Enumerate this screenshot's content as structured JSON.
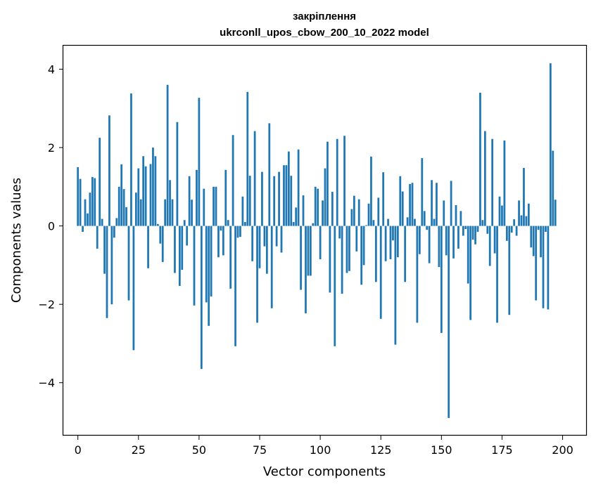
{
  "chart_data": {
    "type": "bar",
    "title": "закріплення",
    "subtitle": "ukrconll_upos_cbow_200_10_2022 model",
    "xlabel": "Vector components",
    "ylabel": "Components values",
    "xlim": [
      -6,
      210
    ],
    "ylim": [
      -5.35,
      4.6
    ],
    "xticks": [
      0,
      25,
      50,
      75,
      100,
      125,
      150,
      175,
      200
    ],
    "yticks": [
      -4,
      -2,
      0,
      2,
      4
    ],
    "xtick_labels": [
      "0",
      "25",
      "50",
      "75",
      "100",
      "125",
      "150",
      "175",
      "200"
    ],
    "ytick_labels": [
      "−4",
      "−2",
      "0",
      "2",
      "4"
    ],
    "grid": false,
    "legend": "none",
    "bar_color": "#1f77b4",
    "values": [
      1.5,
      1.2,
      -0.15,
      0.68,
      0.32,
      0.85,
      1.25,
      1.22,
      -0.58,
      2.25,
      0.18,
      -1.22,
      -2.35,
      2.82,
      -2.0,
      -0.3,
      0.2,
      1.0,
      1.57,
      0.94,
      0.48,
      -1.9,
      3.38,
      -3.17,
      0.85,
      1.47,
      0.68,
      1.78,
      1.52,
      -1.08,
      1.58,
      2.0,
      1.78,
      0.05,
      -0.45,
      -0.92,
      0.68,
      3.6,
      1.17,
      0.68,
      -1.2,
      2.65,
      -1.53,
      -1.12,
      0.15,
      -0.5,
      1.27,
      0.67,
      -2.03,
      1.43,
      3.27,
      -3.65,
      0.95,
      -1.95,
      -2.55,
      -1.8,
      1.0,
      1.0,
      -0.8,
      -0.12,
      -0.75,
      1.43,
      0.15,
      -1.6,
      2.32,
      -3.07,
      -0.3,
      -0.28,
      0.75,
      0.1,
      3.42,
      1.28,
      -0.9,
      2.42,
      -2.47,
      -1.08,
      1.38,
      -0.52,
      -1.22,
      2.62,
      -2.1,
      1.27,
      -0.52,
      1.38,
      -0.68,
      1.55,
      1.55,
      1.9,
      1.28,
      0.1,
      0.47,
      1.95,
      -1.63,
      0.78,
      -2.23,
      -1.27,
      -1.27,
      0.07,
      1.0,
      0.95,
      -0.85,
      0.65,
      1.47,
      2.15,
      -1.7,
      0.87,
      -3.07,
      2.22,
      -0.32,
      -1.73,
      2.3,
      -1.2,
      -1.15,
      0.43,
      0.77,
      -0.65,
      0.68,
      -1.5,
      -1.0,
      0.02,
      0.57,
      1.77,
      0.15,
      -1.43,
      0.72,
      -2.37,
      1.37,
      -0.9,
      0.18,
      -0.85,
      -0.37,
      -3.03,
      -0.8,
      1.27,
      0.88,
      -1.43,
      0.22,
      1.07,
      1.1,
      0.18,
      -2.47,
      -0.72,
      1.73,
      0.38,
      -0.1,
      -0.95,
      1.17,
      0.18,
      1.1,
      -1.05,
      -2.73,
      0.65,
      -0.75,
      -4.9,
      1.15,
      -0.83,
      0.53,
      -0.58,
      0.38,
      -0.25,
      -0.08,
      -1.47,
      -2.4,
      -0.35,
      -0.47,
      -0.15,
      3.4,
      0.15,
      2.42,
      -0.2,
      -1.02,
      2.22,
      -0.7,
      -2.47,
      0.75,
      0.52,
      2.18,
      -0.38,
      -2.27,
      -0.17,
      0.17,
      -0.25,
      0.65,
      0.27,
      1.48,
      0.25,
      0.57,
      -0.55,
      -0.77,
      -1.9,
      -0.1,
      -0.8,
      -2.1,
      -0.15,
      -2.13,
      4.15,
      1.92,
      0.67
    ]
  }
}
